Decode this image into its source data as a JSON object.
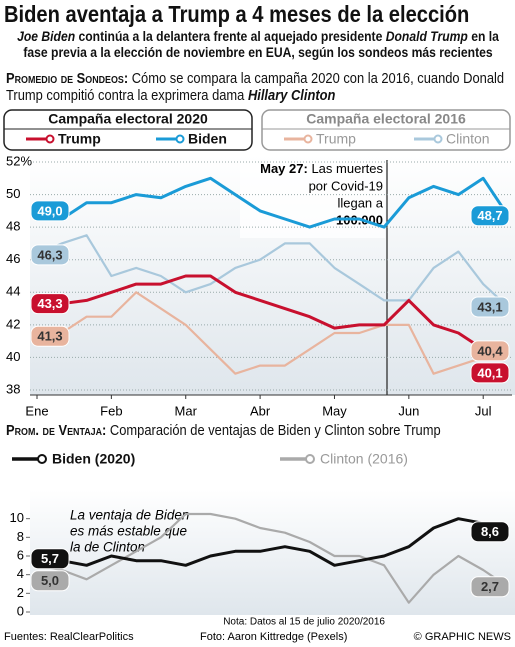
{
  "header": {
    "title": "Biden aventaja a Trump a 4 meses de la elección",
    "subtitle": [
      "Joe Biden",
      " continúa a la delantera frente al aquejado presidente ",
      "Donald Trump",
      " en la fase previa a la elección de noviembre en EUA, según los sondeos más recientes"
    ]
  },
  "chart_data": [
    {
      "type": "line",
      "heading": "Promedio de Sondeos:",
      "description": [
        "Cómo se compara la campaña 2020 con la 2016, cuando Donald Trump compitió contra la exprimera dama ",
        "Hillary Clinton"
      ],
      "legend_groups": [
        "Campaña electoral 2020",
        "Campaña electoral 2016"
      ],
      "categories": [
        "Ene",
        null,
        null,
        "Feb",
        null,
        null,
        "Mar",
        null,
        null,
        "Abr",
        null,
        null,
        "May",
        null,
        null,
        "Jun",
        null,
        null,
        "Jul",
        null
      ],
      "series": [
        {
          "name": "Trump",
          "color": "#c8102e",
          "values": [
            43.3,
            43.3,
            43.5,
            44,
            44.5,
            44.5,
            45,
            45,
            44,
            43.5,
            43,
            42.5,
            41.8,
            42,
            42,
            43.5,
            42,
            41.5,
            40.5,
            40.1
          ],
          "value_labels": [
            "43,3",
            null,
            null,
            null,
            null,
            null,
            null,
            null,
            null,
            null,
            null,
            null,
            null,
            null,
            null,
            null,
            null,
            null,
            null,
            "40,1"
          ]
        },
        {
          "name": "Biden",
          "color": "#1a9bd7",
          "values": [
            49.0,
            48.5,
            49.5,
            49.5,
            50,
            49.8,
            50.5,
            51,
            50,
            49,
            48.5,
            48,
            48.5,
            48.5,
            48,
            49.8,
            50.5,
            50,
            51,
            48.7
          ],
          "value_labels": [
            "49,0",
            null,
            null,
            null,
            null,
            null,
            null,
            null,
            null,
            null,
            null,
            null,
            null,
            null,
            null,
            null,
            null,
            null,
            null,
            "48,7"
          ]
        },
        {
          "name": "Trump",
          "color": "#e8b49e",
          "values": [
            41.3,
            41.5,
            42.5,
            42.5,
            44,
            43,
            42,
            40.5,
            39,
            39.5,
            39.5,
            40.5,
            41.5,
            41.5,
            42,
            42,
            39,
            39.5,
            40,
            40.4
          ],
          "value_labels": [
            "41,3",
            null,
            null,
            null,
            null,
            null,
            null,
            null,
            null,
            null,
            null,
            null,
            null,
            null,
            null,
            null,
            null,
            null,
            null,
            "40,4"
          ]
        },
        {
          "name": "Clinton",
          "color": "#a9c8dc",
          "values": [
            46.3,
            47,
            47.5,
            45,
            45.5,
            45,
            44,
            44.5,
            45.5,
            46,
            47,
            47,
            45.5,
            44.5,
            43.5,
            43.5,
            45.5,
            46.5,
            44.5,
            43.1
          ],
          "value_labels": [
            "46,3",
            null,
            null,
            null,
            null,
            null,
            null,
            null,
            null,
            null,
            null,
            null,
            null,
            null,
            null,
            null,
            null,
            null,
            null,
            "43,1"
          ]
        }
      ],
      "ylim": [
        38,
        52
      ],
      "yticks": [
        38,
        40,
        42,
        44,
        46,
        48,
        50,
        {
          "value": 52,
          "label": "52%"
        }
      ],
      "grid": true,
      "annotation": {
        "title": "May 27:",
        "lines": [
          "Las muertes",
          "por Covid-19",
          "llegan a",
          "100.000"
        ]
      }
    },
    {
      "type": "line",
      "heading": "Prom. de Ventaja:",
      "description": [
        "Comparación de ventajas de Biden y Clinton sobre Trump"
      ],
      "categories": [
        "Ene",
        null,
        null,
        "Feb",
        null,
        null,
        "Mar",
        null,
        null,
        "Abr",
        null,
        null,
        "May",
        null,
        null,
        "Jun",
        null,
        null,
        "Jul",
        null
      ],
      "series": [
        {
          "name": "Biden (2020)",
          "color": "#111111",
          "values": [
            5.7,
            5.5,
            5,
            6,
            5.5,
            5.5,
            5,
            6,
            6.5,
            6.5,
            7,
            6.5,
            5,
            5.5,
            6,
            7,
            9,
            10,
            9.5,
            8.6
          ],
          "value_labels": [
            "5,7",
            null,
            null,
            null,
            null,
            null,
            null,
            null,
            null,
            null,
            null,
            null,
            null,
            null,
            null,
            null,
            null,
            null,
            null,
            "8,6"
          ]
        },
        {
          "name": "Clinton (2016)",
          "color": "#aaaaaa",
          "values": [
            5.0,
            4.5,
            3.5,
            5,
            6.5,
            8,
            10.5,
            10.5,
            10,
            9,
            8.5,
            7.5,
            6,
            6,
            5,
            1,
            4,
            6,
            4.5,
            2.7
          ],
          "value_labels": [
            "5,0",
            null,
            null,
            null,
            null,
            null,
            null,
            null,
            null,
            null,
            null,
            null,
            null,
            null,
            null,
            null,
            null,
            null,
            null,
            "2,7"
          ]
        }
      ],
      "ylim": [
        0,
        12
      ],
      "yticks": [
        0,
        2,
        4,
        6,
        8,
        10
      ],
      "grid": false,
      "annotation": {
        "lines": [
          "La ventaja de Biden",
          "es más estable que",
          "la de Clinton"
        ]
      },
      "note": "Nota: Datos al 15 de julio 2020/2016"
    }
  ],
  "footer": {
    "source": "Fuentes: RealClearPolitics",
    "photo": "Foto: Aaron Kittredge (Pexels)",
    "credit": "© GRAPHIC NEWS"
  }
}
